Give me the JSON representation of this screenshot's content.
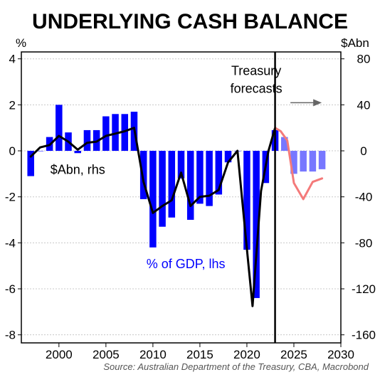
{
  "chart_data": {
    "type": "bar",
    "title": "UNDERLYING CASH BALANCE",
    "left_axis_unit": "%",
    "right_axis_unit": "$Abn",
    "source": "Source: Australian Department of the Treasury, CBA, Macrobond",
    "x_ticks": [
      "2000",
      "2005",
      "2010",
      "2015",
      "2020",
      "2025",
      "2030"
    ],
    "y_left_ticks": [
      "4",
      "2",
      "0",
      "-2",
      "-4",
      "-6",
      "-8"
    ],
    "y_right_ticks": [
      "80",
      "40",
      "0",
      "-40",
      "-80",
      "-120",
      "-160"
    ],
    "xlim": [
      1996,
      2030
    ],
    "ylim_left": [
      -8.35,
      4.3
    ],
    "ylim_right": [
      -167,
      86
    ],
    "grid": true,
    "series": [
      {
        "name": "% of GDP, lhs",
        "axis": "left",
        "kind": "bar",
        "color": "#0000ff",
        "forecast_color": "#7777ff",
        "x": [
          1997,
          1998,
          1999,
          2000,
          2001,
          2002,
          2003,
          2004,
          2005,
          2006,
          2007,
          2008,
          2009,
          2010,
          2011,
          2012,
          2013,
          2014,
          2015,
          2016,
          2017,
          2018,
          2019,
          2020,
          2021,
          2022,
          2023,
          2024,
          2025,
          2026,
          2027,
          2028
        ],
        "values": [
          -1.1,
          0.0,
          0.6,
          2.0,
          0.8,
          -0.1,
          0.9,
          0.9,
          1.5,
          1.6,
          1.6,
          1.7,
          -2.1,
          -4.2,
          -3.3,
          -2.9,
          -1.2,
          -3.0,
          -2.3,
          -2.4,
          -1.9,
          -0.5,
          0.0,
          -4.3,
          -6.4,
          -1.4,
          0.9,
          0.6,
          -1.0,
          -0.9,
          -0.9,
          -0.8
        ],
        "forecast_from": 2024
      },
      {
        "name": "$Abn, rhs",
        "axis": "right",
        "kind": "line",
        "color": "#000000",
        "x": [
          1997,
          1998,
          1999,
          2000,
          2001,
          2002,
          2003,
          2004,
          2005,
          2006,
          2007,
          2008,
          2009,
          2010,
          2011,
          2012,
          2013,
          2014,
          2015,
          2016,
          2017,
          2018,
          2019,
          2020,
          2020.6,
          2021.5,
          2022.3,
          2023.0
        ],
        "values": [
          -5,
          3,
          5,
          13,
          8,
          1,
          7,
          8,
          13,
          15,
          17,
          20,
          -27,
          -54,
          -48,
          -43,
          -19,
          -48,
          -40,
          -39,
          -34,
          -10,
          0,
          -85,
          -135,
          -35,
          0,
          20
        ]
      },
      {
        "name": "forecast",
        "axis": "right",
        "kind": "line",
        "color": "#f47a7a",
        "x": [
          2023.0,
          2023.6,
          2024.3,
          2025.0,
          2026.0,
          2027.0,
          2028.0
        ],
        "values": [
          20,
          17,
          9,
          -28,
          -42,
          -27,
          -24
        ]
      }
    ],
    "annotations": [
      {
        "text_lines": [
          "Treasury",
          "forecasts"
        ],
        "arrow": "right",
        "anchor_x": 2021,
        "anchor_y_left": 3.3
      },
      {
        "text": "$Abn, rhs",
        "color": "#000000",
        "anchor_x": 2002,
        "anchor_y_left": -1.0
      },
      {
        "text": "% of GDP, lhs",
        "color": "#0000ff",
        "anchor_x": 2013.5,
        "anchor_y_left": -5.1
      }
    ],
    "vline_x": 2023.0
  }
}
